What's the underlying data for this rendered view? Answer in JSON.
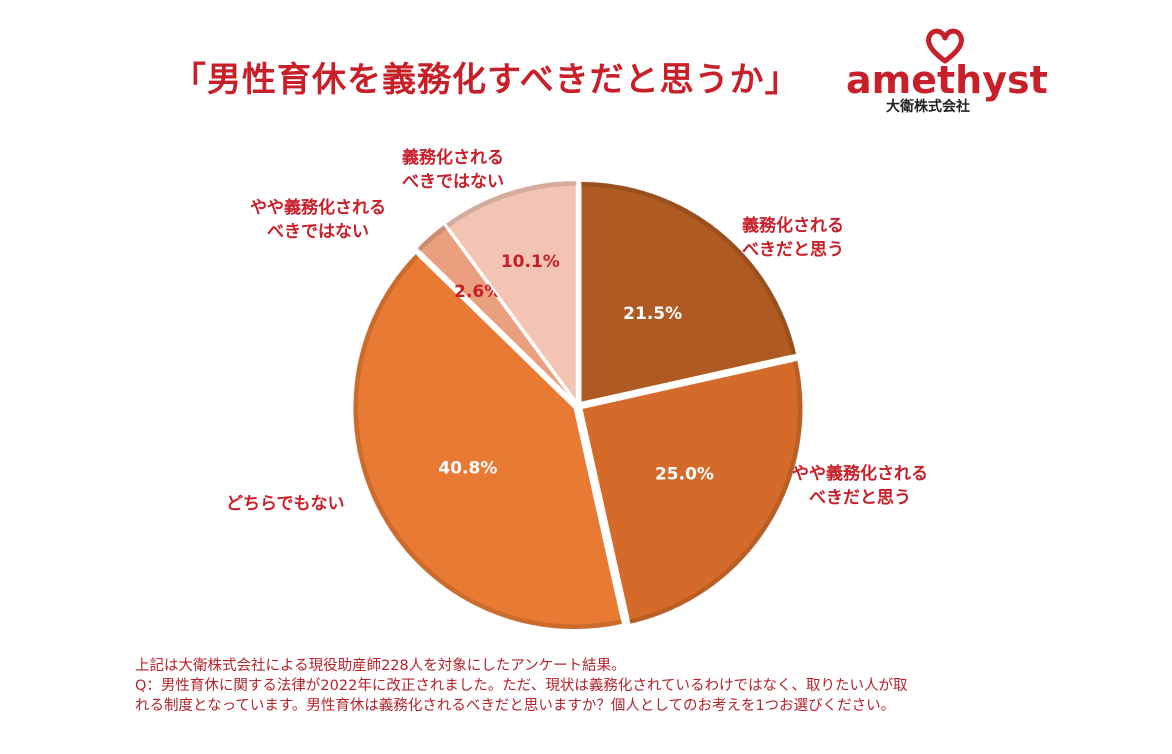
{
  "title": "「男性育休を義務化すべきだと思うか」",
  "logo": {
    "word": "amethyst",
    "company": "大衛株式会社",
    "icon": "heart-icon"
  },
  "colors": {
    "title": "#c8202a",
    "accent": "#c8202a"
  },
  "chart_data": {
    "type": "pie",
    "title": "「男性育休を義務化すべきだと思うか」",
    "start_angle_deg": 0,
    "direction": "clockwise",
    "slices": [
      {
        "label": "義務化される\nべきだと思う",
        "value": 21.5,
        "value_label": "21.5%",
        "color": "#b05a23"
      },
      {
        "label": "やや義務化される\nべきだと思う",
        "value": 25.0,
        "value_label": "25.0%",
        "color": "#d46b2a"
      },
      {
        "label": "どちらでもない",
        "value": 40.8,
        "value_label": "40.8%",
        "color": "#e87a33"
      },
      {
        "label": "やや義務化される\nべきではない",
        "value": 2.6,
        "value_label": "2.6%",
        "color": "#eaa07f"
      },
      {
        "label": "義務化される\nべきではない",
        "value": 10.1,
        "value_label": "10.1%",
        "color": "#f3c3b3"
      }
    ]
  },
  "notes": {
    "line1": "上記は大衛株式会社による現役助産師228人を対象にしたアンケート結果。",
    "line2": "Q：男性育休に関する法律が2022年に改正されました。ただ、現状は義務化されているわけではなく、取りたい人が取",
    "line3": "れる制度となっています。男性育休は義務化されるべきだと思いますか？個人としてのお考えを1つお選びください。"
  }
}
